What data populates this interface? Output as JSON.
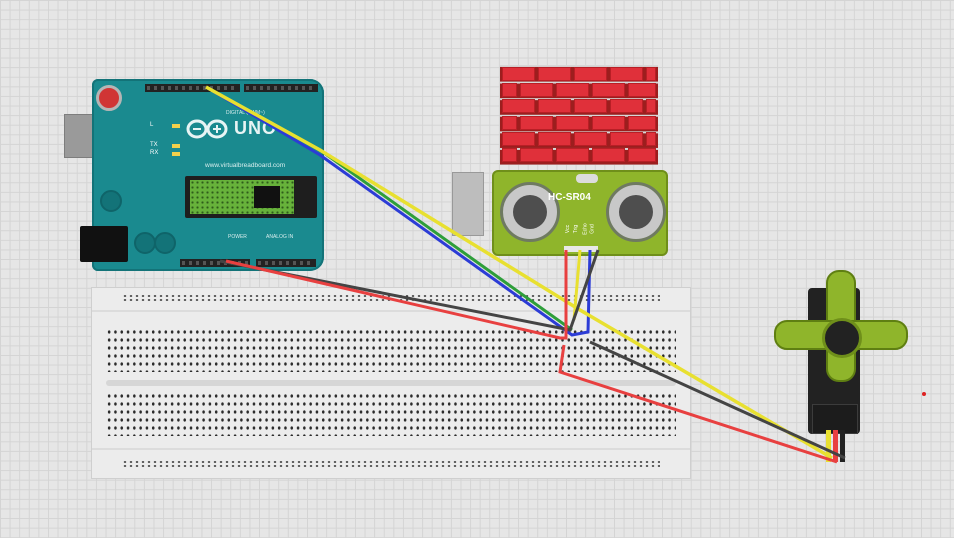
{
  "arduino": {
    "logo_text": "UNO",
    "website_text": "www.virtualbreadboard.com",
    "digital_label": "DIGITAL (PWM~)",
    "power_label": "POWER",
    "analog_label": "ANALOG IN",
    "led_l": "L",
    "led_tx": "TX",
    "led_rx": "RX"
  },
  "sensor": {
    "title": "HC-SR04",
    "pins": [
      "Vcc",
      "Trig",
      "Echo",
      "Gnd"
    ]
  },
  "colors": {
    "board": "#1a8a8f",
    "sensor": "#8fb52b",
    "wall": "#e0303a",
    "wire_red": "#e84040",
    "wire_black": "#444444",
    "wire_blue": "#2c3cd6",
    "wire_yellow": "#e8e030",
    "wire_green": "#2e9e3a"
  },
  "icons": [
    "arduino-board",
    "breadboard",
    "brick-wall",
    "ultrasonic-sensor",
    "servo-motor"
  ]
}
